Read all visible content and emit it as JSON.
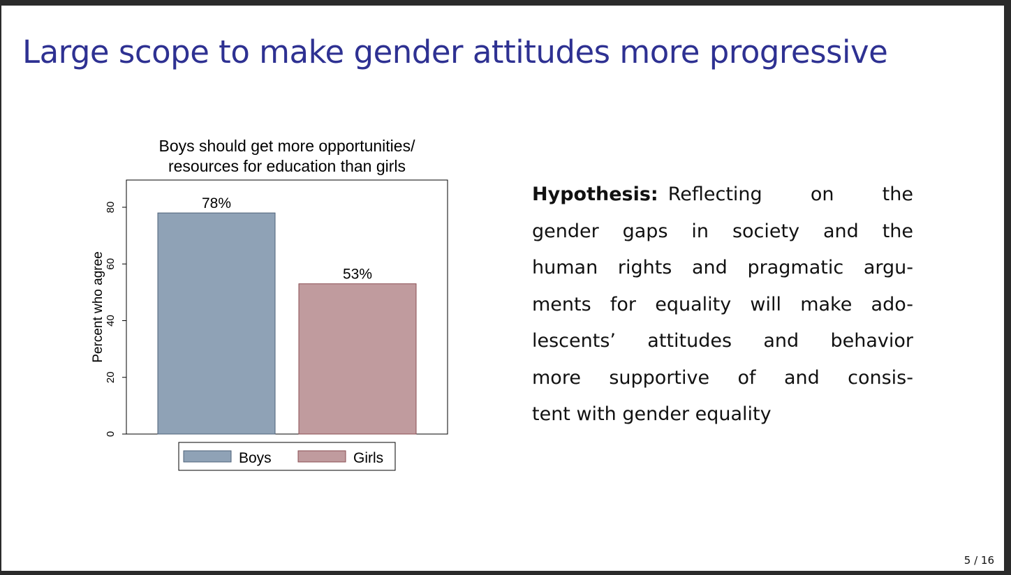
{
  "slide": {
    "title": "Large scope to make gender attitudes more progressive",
    "hypothesis_label": "Hypothesis:",
    "hypothesis_lines": [
      "Reflecting on the",
      "gender gaps in society and the",
      "human rights and pragmatic argu-",
      "ments for equality will make ado-",
      "lescents’ attitudes and behavior",
      "more supportive of and consis-",
      "tent with gender equality"
    ],
    "page_number": "5 / 16"
  },
  "chart_data": {
    "type": "bar",
    "title": [
      "Boys should get more opportunities/",
      "resources for education than girls"
    ],
    "y_label": "Percent who agree",
    "categories": [
      "Boys",
      "Girls"
    ],
    "values": [
      78,
      53
    ],
    "value_labels": [
      "78%",
      "53%"
    ],
    "colors": [
      "#8fa2b6",
      "#c09b9e"
    ],
    "edge_colors": [
      "#4d6178",
      "#8a4d52"
    ],
    "ylim": [
      0,
      89.6
    ],
    "yticks": [
      0,
      20,
      40,
      60,
      80
    ],
    "grid": false,
    "legend": "bottom"
  }
}
